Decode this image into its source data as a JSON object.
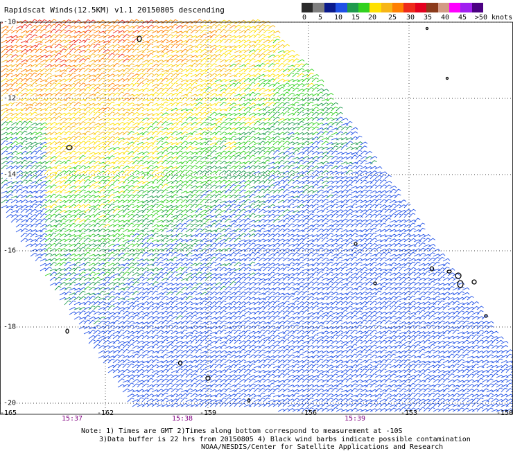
{
  "header": {
    "title": "Rapidscat Winds(12.5KM) v1.1 20150805 descending"
  },
  "colorbar": {
    "colors": [
      "#2b2b2b",
      "#7f7f7f",
      "#0a1a8c",
      "#1f50e6",
      "#1e9a4d",
      "#31d11f",
      "#ffe100",
      "#f7b515",
      "#ff7f00",
      "#ee2a1a",
      "#e3001e",
      "#8b3a1a",
      "#d39a84",
      "#ff00ff",
      "#a020f0",
      "#4b0082"
    ],
    "labels": [
      "0",
      "5",
      "10",
      "15",
      "20",
      "25",
      "30",
      "35",
      "40",
      "45",
      ">50 knots"
    ]
  },
  "axes": {
    "lat_labels": [
      "-10",
      "-12",
      "-14",
      "-16",
      "-18",
      "-20"
    ],
    "lon_labels": [
      "-165",
      "-162",
      "-159",
      "-156",
      "-153",
      "-150"
    ],
    "times": [
      "15:37",
      "15:38",
      "15:39"
    ]
  },
  "notes": {
    "line1": "Note: 1) Times are GMT 2)Times along bottom correspond to measurement at -10S",
    "line2": "3)Data buffer is 22 hrs from 20150805 4) Black wind barbs indicate possible contamination",
    "line3": "NOAA/NESDIS/Center for Satellite Applications and Research"
  }
}
